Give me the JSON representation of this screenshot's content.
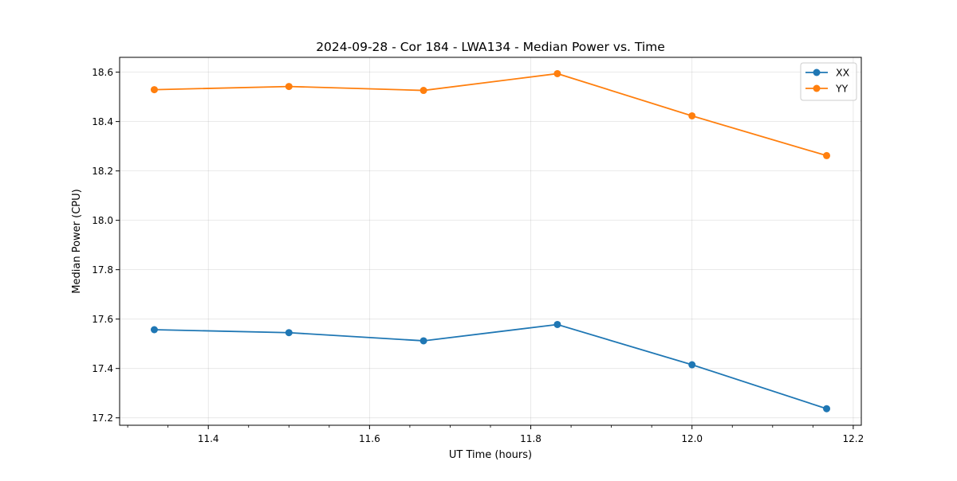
{
  "chart_data": {
    "type": "line",
    "title": "2024-09-28 - Cor 184 - LWA134 - Median Power vs. Time",
    "xlabel": "UT Time (hours)",
    "ylabel": "Median Power (CPU)",
    "xlim": [
      11.29,
      12.21
    ],
    "ylim": [
      17.17,
      18.66
    ],
    "xticks": [
      11.4,
      11.6,
      11.8,
      12.0,
      12.2
    ],
    "xtick_labels": [
      "11.4",
      "11.6",
      "11.8",
      "12.0",
      "12.2"
    ],
    "yticks": [
      17.2,
      17.4,
      17.6,
      17.8,
      18.0,
      18.2,
      18.4,
      18.6
    ],
    "ytick_labels": [
      "17.2",
      "17.4",
      "17.6",
      "17.8",
      "18.0",
      "18.2",
      "18.4",
      "18.6"
    ],
    "grid": true,
    "legend_position": "top-right",
    "x": [
      11.333,
      11.5,
      11.667,
      11.833,
      12.0,
      12.167
    ],
    "series": [
      {
        "name": "XX",
        "color": "#1f77b4",
        "values": [
          17.557,
          17.545,
          17.512,
          17.578,
          17.415,
          17.237
        ]
      },
      {
        "name": "YY",
        "color": "#ff7f0e",
        "values": [
          18.529,
          18.542,
          18.526,
          18.594,
          18.423,
          18.262
        ]
      }
    ]
  }
}
